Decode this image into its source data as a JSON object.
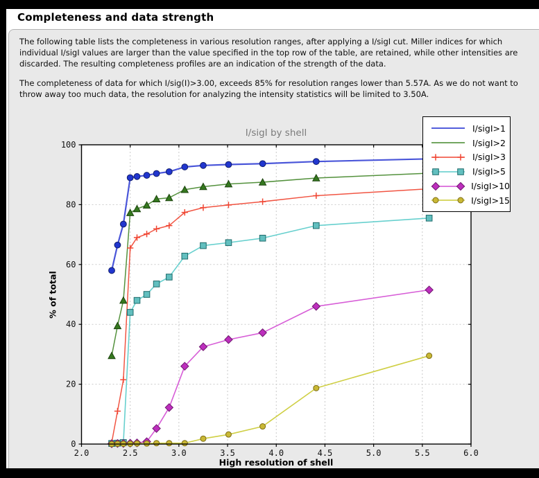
{
  "window": {
    "title": "Completeness and data strength"
  },
  "panel": {
    "paragraph1": "The following table lists the completeness in various resolution ranges, after applying a I/sigI cut. Miller indices for which individual I/sigI values are larger than the value specified in the top row of the table, are retained, while other intensities are discarded. The resulting completeness profiles are an indication of the strength of the data.",
    "paragraph2": "The completeness of data for which I/sig(I)>3.00, exceeds  85% for resolution ranges lower than 5.57A. As we do not want to throw away too much data, the resolution for analyzing the intensity statistics will be limited to 3.50A."
  },
  "palette": {
    "page_background": "#e9e9e9",
    "window_background": "#ffffff",
    "outer_frame": "#000000",
    "panel_border": "#b3b3b3",
    "grid_color": "#c9c9c9",
    "chart_title_color": "#7b7b7b",
    "plot_background": "#ffffff"
  },
  "chart_data": {
    "type": "line",
    "title": "I/sigI by shell",
    "xlabel": "High resolution of shell",
    "ylabel": "% of total",
    "xlim": [
      2.0,
      6.0
    ],
    "ylim": [
      0,
      100
    ],
    "xticks": [
      "2.0",
      "2.5",
      "3.0",
      "3.5",
      "4.0",
      "4.5",
      "5.0",
      "5.5",
      "6.0"
    ],
    "yticks": [
      "0",
      "20",
      "40",
      "60",
      "80",
      "100"
    ],
    "grid": true,
    "legend_position": "top-right",
    "x": [
      2.31,
      2.37,
      2.43,
      2.5,
      2.57,
      2.67,
      2.77,
      2.9,
      3.06,
      3.25,
      3.51,
      3.86,
      4.41,
      5.57
    ],
    "series": [
      {
        "name": "I/sigI>1",
        "marker": "circle",
        "marker_size": 4.4,
        "line_width": 2.2,
        "color": "#3a46d6",
        "marker_fill": "#2136cf",
        "marker_edge": "#101d6b",
        "legend_markers": false,
        "values": [
          58,
          66.5,
          73.5,
          89,
          89.4,
          89.8,
          90.4,
          91,
          92.6,
          93.1,
          93.4,
          93.7,
          94.4,
          95.3
        ]
      },
      {
        "name": "I/sigI>2",
        "marker": "triangle",
        "marker_size": 5,
        "line_width": 1.5,
        "color": "#44882b",
        "marker_fill": "#35781f",
        "marker_edge": "#1c440e",
        "legend_markers": false,
        "values": [
          29.5,
          39.5,
          48,
          77.3,
          78.6,
          79.8,
          81.9,
          82.3,
          85,
          86,
          86.9,
          87.5,
          88.9,
          90.5
        ]
      },
      {
        "name": "I/sigI>3",
        "marker": "plus",
        "marker_size": 4.6,
        "line_width": 1.5,
        "color": "#f04532",
        "marker_fill": "#f04532",
        "marker_edge": "#f04532",
        "legend_markers": true,
        "values": [
          0.5,
          11,
          21.5,
          65.5,
          69,
          70.2,
          71.9,
          73,
          77.4,
          79,
          79.9,
          81,
          83,
          85.3
        ]
      },
      {
        "name": "I/sigI>5",
        "marker": "square",
        "marker_size": 4.3,
        "line_width": 1.6,
        "color": "#5accca",
        "marker_fill": "#62bfbf",
        "marker_edge": "#1e6a6a",
        "legend_markers": true,
        "values": [
          0.2,
          0.3,
          0.5,
          44,
          48,
          50,
          53.5,
          55.8,
          62.8,
          66.3,
          67.3,
          68.8,
          73,
          75.5
        ]
      },
      {
        "name": "I/sigI>10",
        "marker": "diamond",
        "marker_size": 5.6,
        "line_width": 1.6,
        "color": "#d44fd4",
        "marker_fill": "#bd2ebd",
        "marker_edge": "#6e176e",
        "legend_markers": true,
        "values": [
          0.1,
          0.2,
          0.2,
          0.3,
          0.4,
          0.8,
          5.2,
          12.2,
          26,
          32.5,
          34.9,
          37.2,
          46,
          51.5
        ]
      },
      {
        "name": "I/sigI>15",
        "marker": "circle",
        "marker_size": 4,
        "line_width": 1.6,
        "color": "#cbcb34",
        "marker_fill": "#c9b835",
        "marker_edge": "#7c6c14",
        "legend_markers": true,
        "values": [
          0,
          0.1,
          0.1,
          0.1,
          0.2,
          0.2,
          0.3,
          0.3,
          0.3,
          1.8,
          3.2,
          5.9,
          18.7,
          29.5
        ]
      }
    ]
  }
}
